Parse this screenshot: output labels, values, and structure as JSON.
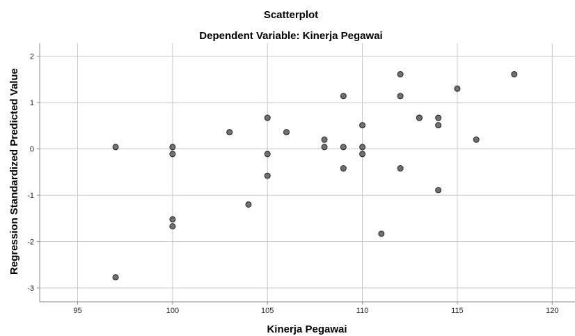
{
  "chart_data": {
    "type": "scatter",
    "title": "Scatterplot",
    "subtitle": "Dependent Variable: Kinerja Pegawai",
    "xlabel": "Kinerja Pegawai",
    "ylabel": "Regression Standardized Predicted Value",
    "xlim": [
      93,
      121.2
    ],
    "ylim": [
      -3.3,
      2.28
    ],
    "xticks": [
      95,
      100,
      105,
      110,
      115,
      120
    ],
    "yticks": [
      2,
      1,
      0,
      -1,
      -2,
      -3
    ],
    "grid": true,
    "points": [
      {
        "x": 97,
        "y": 0.04
      },
      {
        "x": 97,
        "y": -2.77
      },
      {
        "x": 100,
        "y": 0.04
      },
      {
        "x": 100,
        "y": -0.11
      },
      {
        "x": 100,
        "y": -1.52
      },
      {
        "x": 100,
        "y": -1.67
      },
      {
        "x": 103,
        "y": 0.36
      },
      {
        "x": 104,
        "y": -1.2
      },
      {
        "x": 105,
        "y": 0.67
      },
      {
        "x": 105,
        "y": -0.11
      },
      {
        "x": 105,
        "y": -0.58
      },
      {
        "x": 106,
        "y": 0.36
      },
      {
        "x": 108,
        "y": 0.2
      },
      {
        "x": 108,
        "y": 0.04
      },
      {
        "x": 109,
        "y": 1.14
      },
      {
        "x": 109,
        "y": 0.04
      },
      {
        "x": 109,
        "y": -0.42
      },
      {
        "x": 110,
        "y": 0.51
      },
      {
        "x": 110,
        "y": 0.04
      },
      {
        "x": 110,
        "y": -0.11
      },
      {
        "x": 111,
        "y": -1.83
      },
      {
        "x": 112,
        "y": 1.61
      },
      {
        "x": 112,
        "y": 1.14
      },
      {
        "x": 112,
        "y": -0.42
      },
      {
        "x": 113,
        "y": 0.67
      },
      {
        "x": 113,
        "y": 0.67
      },
      {
        "x": 114,
        "y": 0.67
      },
      {
        "x": 114,
        "y": 0.51
      },
      {
        "x": 114,
        "y": -0.89
      },
      {
        "x": 115,
        "y": 1.3
      },
      {
        "x": 116,
        "y": 0.2
      },
      {
        "x": 118,
        "y": 1.61
      }
    ]
  },
  "colors": {
    "point_fill": "#707070",
    "point_stroke": "#222222",
    "grid": "#c8c8c8",
    "axis": "#8c8c8c"
  }
}
